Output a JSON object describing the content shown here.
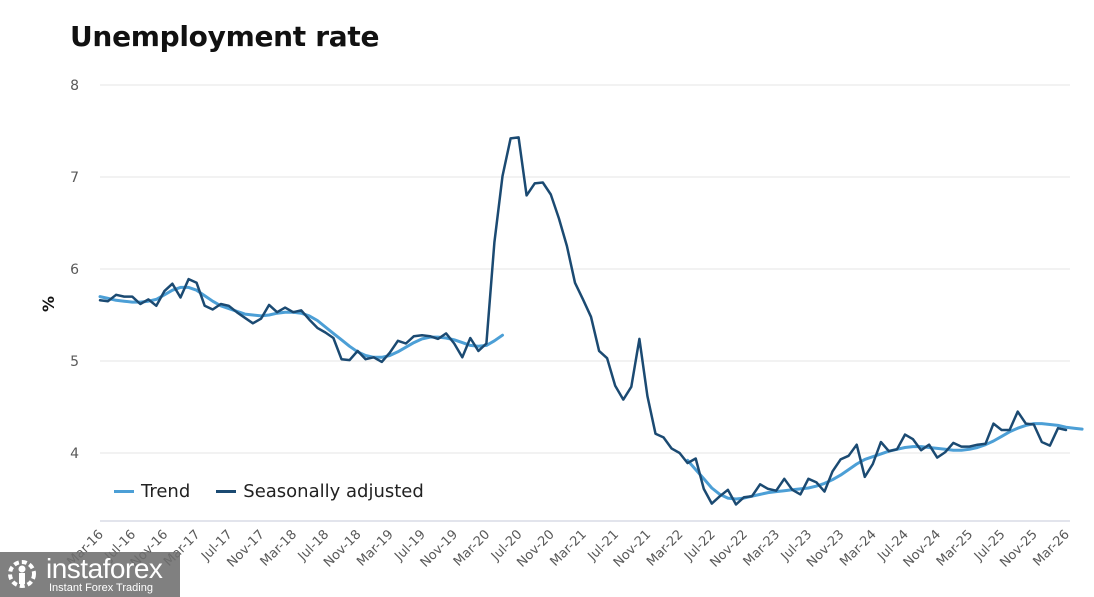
{
  "chart_data": {
    "type": "line",
    "title": "Unemployment rate",
    "xlabel": "",
    "ylabel": "%",
    "ylim": [
      3.25,
      8
    ],
    "yticks": [
      4,
      5,
      6,
      7,
      8
    ],
    "grid": true,
    "legend_position": "bottom-left",
    "start_month": "Mar-16",
    "x_tick_labels": [
      "Mar-16",
      "Jul-16",
      "Nov-16",
      "Mar-17",
      "Jul-17",
      "Nov-17",
      "Mar-18",
      "Jul-18",
      "Nov-18",
      "Mar-19",
      "Jul-19",
      "Nov-19",
      "Mar-20",
      "Jul-20",
      "Nov-20",
      "Mar-21",
      "Jul-21",
      "Nov-21",
      "Mar-22",
      "Jul-22",
      "Nov-22",
      "Mar-23",
      "Jul-23",
      "Nov-23",
      "Mar-24",
      "Jul-24",
      "Nov-24",
      "Mar-25",
      "Jul-25",
      "Nov-25",
      "Mar-26"
    ],
    "series": [
      {
        "name": "Trend",
        "color": "#4c9fd6",
        "values": [
          5.7,
          5.68,
          5.66,
          5.65,
          5.64,
          5.64,
          5.65,
          5.67,
          5.72,
          5.77,
          5.8,
          5.8,
          5.77,
          5.71,
          5.65,
          5.6,
          5.57,
          5.54,
          5.51,
          5.5,
          5.49,
          5.5,
          5.52,
          5.53,
          5.53,
          5.52,
          5.49,
          5.44,
          5.37,
          5.3,
          5.23,
          5.16,
          5.1,
          5.06,
          5.04,
          5.04,
          5.06,
          5.1,
          5.15,
          5.2,
          5.24,
          5.26,
          5.26,
          5.25,
          5.23,
          5.2,
          5.17,
          5.16,
          5.17,
          5.22,
          5.28,
          null,
          null,
          null,
          null,
          null,
          null,
          null,
          null,
          null,
          null,
          null,
          null,
          null,
          null,
          null,
          null,
          null,
          null,
          null,
          null,
          null,
          null,
          3.92,
          3.82,
          3.72,
          3.62,
          3.55,
          3.51,
          3.5,
          3.51,
          3.53,
          3.55,
          3.57,
          3.58,
          3.59,
          3.6,
          3.61,
          3.62,
          3.64,
          3.67,
          3.71,
          3.76,
          3.82,
          3.88,
          3.93,
          3.96,
          3.99,
          4.02,
          4.04,
          4.06,
          4.07,
          4.07,
          4.06,
          4.05,
          4.04,
          4.03,
          4.03,
          4.04,
          4.06,
          4.09,
          4.13,
          4.18,
          4.23,
          4.27,
          4.3,
          4.32,
          4.32,
          4.31,
          4.3,
          4.28,
          4.27,
          4.26
        ]
      },
      {
        "name": "Seasonally adjusted",
        "color": "#1b4a72",
        "values": [
          5.66,
          5.65,
          5.72,
          5.7,
          5.7,
          5.62,
          5.67,
          5.6,
          5.76,
          5.84,
          5.69,
          5.89,
          5.85,
          5.6,
          5.56,
          5.62,
          5.6,
          5.53,
          5.47,
          5.41,
          5.46,
          5.61,
          5.53,
          5.58,
          5.53,
          5.55,
          5.45,
          5.36,
          5.31,
          5.25,
          5.02,
          5.01,
          5.11,
          5.02,
          5.04,
          4.99,
          5.09,
          5.22,
          5.19,
          5.27,
          5.28,
          5.27,
          5.24,
          5.3,
          5.19,
          5.04,
          5.25,
          5.11,
          5.19,
          6.29,
          7.01,
          7.42,
          7.43,
          6.8,
          6.93,
          6.94,
          6.81,
          6.55,
          6.25,
          5.85,
          5.67,
          5.48,
          5.11,
          5.03,
          4.73,
          4.58,
          4.72,
          5.24,
          4.62,
          4.21,
          4.17,
          4.05,
          4.0,
          3.89,
          3.94,
          3.61,
          3.45,
          3.53,
          3.6,
          3.44,
          3.52,
          3.53,
          3.66,
          3.61,
          3.59,
          3.72,
          3.6,
          3.55,
          3.72,
          3.68,
          3.58,
          3.8,
          3.93,
          3.97,
          4.09,
          3.74,
          3.88,
          4.12,
          4.02,
          4.04,
          4.2,
          4.15,
          4.03,
          4.09,
          3.95,
          4.01,
          4.11,
          4.07,
          4.07,
          4.09,
          4.1,
          4.32,
          4.25,
          4.25,
          4.45,
          4.32,
          4.31,
          4.12,
          4.08,
          4.27,
          4.25
        ]
      }
    ]
  },
  "legend": [
    {
      "label": "Trend",
      "color": "#4c9fd6"
    },
    {
      "label": "Seasonally adjusted",
      "color": "#1b4a72"
    }
  ],
  "watermark": {
    "brand": "instaforex",
    "tagline": "Instant Forex Trading",
    "icon": "gear-person-logo-icon"
  }
}
